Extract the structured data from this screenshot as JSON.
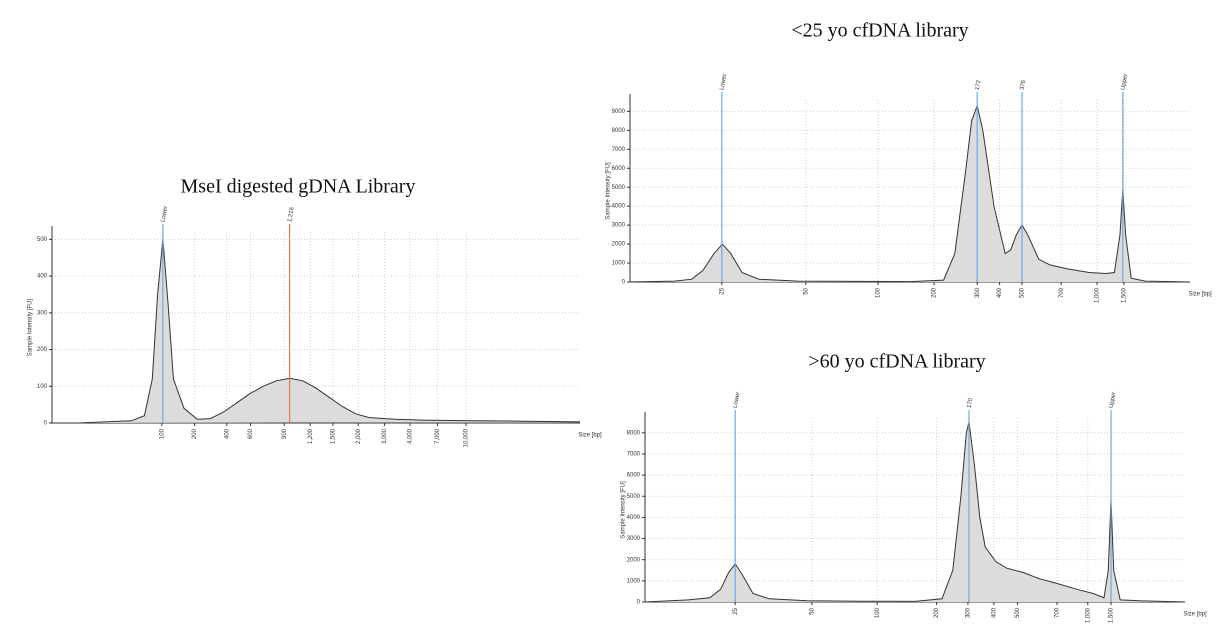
{
  "chart_data": [
    {
      "type": "line",
      "title": "MseI digested gDNA Library",
      "y_label": "Sample Intensity [FU]",
      "x_label": "Size [bp]",
      "xlim": [
        0,
        100
      ],
      "ylim": [
        0,
        520
      ],
      "grid": true,
      "color": "#333333",
      "fill": "#dcdcdc",
      "yticks": [
        0,
        100,
        200,
        300,
        400,
        500
      ],
      "xticks": [
        {
          "value": 20.8,
          "label": "100"
        },
        {
          "value": 27,
          "label": "200"
        },
        {
          "value": 33.1,
          "label": "400"
        },
        {
          "value": 37.6,
          "label": "600"
        },
        {
          "value": 44,
          "label": "900"
        },
        {
          "value": 48.9,
          "label": "1,200"
        },
        {
          "value": 53.2,
          "label": "1,500"
        },
        {
          "value": 58,
          "label": "2,000"
        },
        {
          "value": 63,
          "label": "3,000"
        },
        {
          "value": 67.8,
          "label": "4,000"
        },
        {
          "value": 73,
          "label": "7,000"
        },
        {
          "value": 78.4,
          "label": "10,000"
        }
      ],
      "markers": [
        {
          "label": "Lower",
          "x": 21,
          "color": "#6aaae6"
        },
        {
          "label": "1,216",
          "x": 45,
          "color": "#e8764e"
        }
      ],
      "x": [
        0,
        5,
        10,
        15,
        17.5,
        19,
        20,
        21,
        22,
        23,
        25,
        27.5,
        30,
        32.5,
        35,
        37.5,
        40,
        42.5,
        45,
        47.5,
        50,
        52.5,
        55,
        57.5,
        60,
        65,
        70,
        80,
        90,
        100
      ],
      "values": [
        0,
        0,
        3,
        6,
        20,
        120,
        350,
        500,
        320,
        120,
        40,
        10,
        12,
        30,
        55,
        80,
        100,
        115,
        122,
        115,
        95,
        70,
        45,
        25,
        15,
        10,
        8,
        6,
        5,
        3
      ]
    },
    {
      "type": "line",
      "title": "<25 yo cfDNA library",
      "y_label": "Sample Intensity [FU]",
      "x_label": "Size [bp]",
      "xlim": [
        0,
        100
      ],
      "ylim": [
        0,
        9600
      ],
      "grid": true,
      "color": "#333333",
      "fill": "#dcdcdc",
      "yticks": [
        0,
        1000,
        2000,
        3000,
        4000,
        5000,
        6000,
        7000,
        8000,
        9000
      ],
      "xticks": [
        {
          "value": 16.4,
          "label": "25"
        },
        {
          "value": 31.4,
          "label": "50"
        },
        {
          "value": 44.3,
          "label": "100"
        },
        {
          "value": 54.3,
          "label": "200"
        },
        {
          "value": 62,
          "label": "300"
        },
        {
          "value": 66,
          "label": "400"
        },
        {
          "value": 70,
          "label": "500"
        },
        {
          "value": 77,
          "label": "700"
        },
        {
          "value": 83.4,
          "label": "1,000"
        },
        {
          "value": 88.2,
          "label": "1,500"
        }
      ],
      "markers": [
        {
          "label": "Lower",
          "x": 16.4,
          "color": "#6aaae6"
        },
        {
          "label": "172",
          "x": 62,
          "color": "#6aaae6"
        },
        {
          "label": "376",
          "x": 70,
          "color": "#6aaae6"
        },
        {
          "label": "Upper",
          "x": 88,
          "color": "#6aaae6"
        }
      ],
      "x": [
        0,
        8,
        11,
        13,
        15,
        16.5,
        18,
        20,
        23,
        30,
        40,
        50,
        56,
        58,
        60,
        61,
        62,
        63,
        65,
        67,
        68,
        69,
        70,
        71,
        73,
        75,
        78,
        82,
        85,
        86.5,
        87.5,
        88,
        88.5,
        89.5,
        92,
        100
      ],
      "values": [
        0,
        50,
        150,
        600,
        1500,
        2000,
        1500,
        500,
        150,
        50,
        30,
        20,
        100,
        1500,
        6000,
        8500,
        9300,
        8000,
        4000,
        1500,
        1700,
        2500,
        3000,
        2500,
        1200,
        900,
        700,
        500,
        450,
        500,
        2500,
        4900,
        2500,
        200,
        50,
        0
      ]
    },
    {
      "type": "line",
      "title": ">60 yo cfDNA library",
      "y_label": "Sample Intensity [FU]",
      "x_label": "Size [bp]",
      "xlim": [
        0,
        100
      ],
      "ylim": [
        0,
        8700
      ],
      "grid": true,
      "color": "#333333",
      "fill": "#dcdcdc",
      "yticks": [
        0,
        1000,
        2000,
        3000,
        4000,
        5000,
        6000,
        7000,
        8000
      ],
      "xticks": [
        {
          "value": 16.7,
          "label": "25"
        },
        {
          "value": 30.9,
          "label": "50"
        },
        {
          "value": 43,
          "label": "100"
        },
        {
          "value": 54,
          "label": "200"
        },
        {
          "value": 59.8,
          "label": "300"
        },
        {
          "value": 64.6,
          "label": "400"
        },
        {
          "value": 69,
          "label": "500"
        },
        {
          "value": 76.3,
          "label": "700"
        },
        {
          "value": 82,
          "label": "1,000"
        },
        {
          "value": 86.3,
          "label": "1,500"
        }
      ],
      "markers": [
        {
          "label": "Lower",
          "x": 16.7,
          "color": "#6aaae6"
        },
        {
          "label": "170",
          "x": 60,
          "color": "#6aaae6"
        },
        {
          "label": "Upper",
          "x": 86.3,
          "color": "#6aaae6"
        }
      ],
      "x": [
        0,
        8,
        12,
        14,
        15.5,
        16.7,
        18,
        20,
        23,
        30,
        40,
        50,
        55,
        57,
        58.5,
        59.5,
        60,
        61,
        62,
        63,
        65,
        67,
        70,
        73,
        76,
        80,
        83,
        85,
        85.8,
        86.3,
        86.8,
        88,
        92,
        100
      ],
      "values": [
        0,
        100,
        200,
        600,
        1400,
        1800,
        1300,
        400,
        150,
        60,
        40,
        30,
        150,
        1500,
        5000,
        8000,
        8500,
        6500,
        4000,
        2600,
        1900,
        1600,
        1400,
        1100,
        900,
        600,
        400,
        200,
        1500,
        4850,
        1500,
        100,
        50,
        0
      ]
    }
  ]
}
